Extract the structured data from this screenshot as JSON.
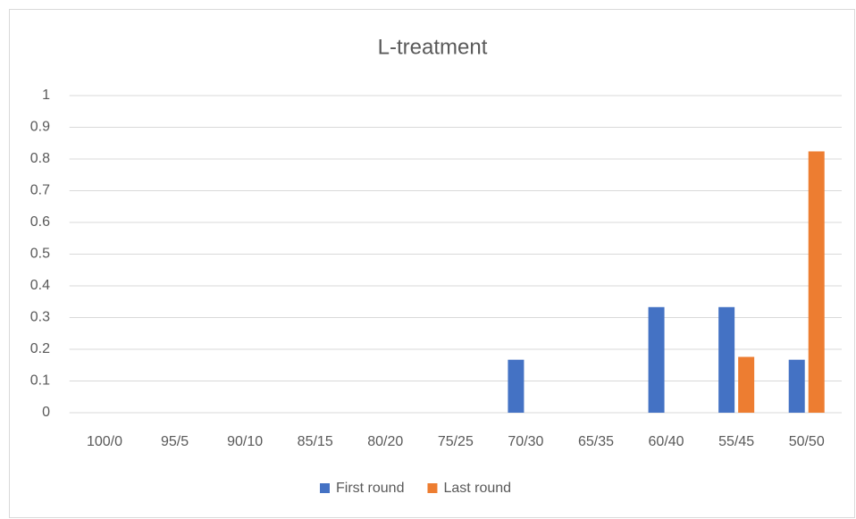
{
  "chart_data": {
    "type": "bar",
    "title": "L-treatment",
    "categories": [
      "100/0",
      "95/5",
      "90/10",
      "85/15",
      "80/20",
      "75/25",
      "70/30",
      "65/35",
      "60/40",
      "55/45",
      "50/50"
    ],
    "series": [
      {
        "name": "First round",
        "color": "#4472c4",
        "values": [
          0,
          0,
          0,
          0,
          0,
          0,
          0.167,
          0,
          0.333,
          0.333,
          0.167
        ]
      },
      {
        "name": "Last round",
        "color": "#ed7d31",
        "values": [
          0,
          0,
          0,
          0,
          0,
          0,
          0,
          0,
          0,
          0.176,
          0.824
        ]
      }
    ],
    "ylim": [
      0,
      1
    ],
    "yticks": [
      0,
      0.1,
      0.2,
      0.3,
      0.4,
      0.5,
      0.6,
      0.7,
      0.8,
      0.9,
      1
    ],
    "grid": true,
    "legend": "bottom"
  }
}
